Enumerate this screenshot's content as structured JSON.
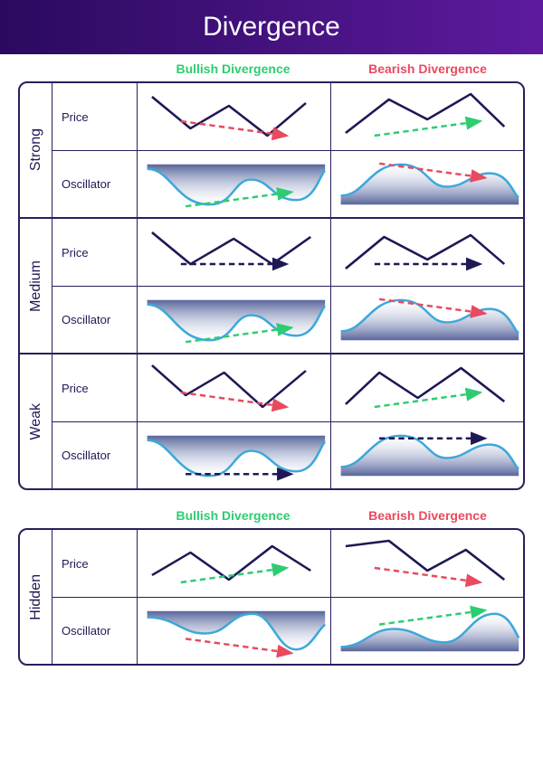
{
  "title": "Divergence",
  "colors": {
    "header_grad_left": "#2a0a5e",
    "header_grad_right": "#5e1a9e",
    "border": "#2a1e5c",
    "line": "#1e1854",
    "osc_stroke": "#3da8d9",
    "osc_fill_top": "#3a4a8a",
    "osc_fill_bot": "#e8eef8",
    "bullish": "#2ecc71",
    "bearish": "#e84a5f",
    "flat": "#1e1854",
    "text_dark": "#1e1854"
  },
  "column_headers": {
    "bullish": "Bullish Divergence",
    "bearish": "Bearish Divergence"
  },
  "row_labels": {
    "price": "Price",
    "oscillator": "Oscillator"
  },
  "groups": [
    {
      "id": "main",
      "categories": [
        {
          "label": "Strong",
          "rows": [
            {
              "type": "price",
              "bullish_price": {
                "peaks": "down-down",
                "arrow": "down",
                "arrow_color": "bearish"
              },
              "bearish_price": {
                "peaks": "up-up",
                "arrow": "up",
                "arrow_color": "bullish"
              }
            },
            {
              "type": "oscillator",
              "bullish_osc": {
                "shape": "valley",
                "arrow": "up",
                "arrow_color": "bullish"
              },
              "bearish_osc": {
                "shape": "peak",
                "arrow": "down",
                "arrow_color": "bearish"
              }
            }
          ]
        },
        {
          "label": "Medium",
          "rows": [
            {
              "type": "price",
              "bullish_price": {
                "peaks": "down-flat",
                "arrow": "flat",
                "arrow_color": "flat"
              },
              "bearish_price": {
                "peaks": "up-flat",
                "arrow": "flat",
                "arrow_color": "flat"
              }
            },
            {
              "type": "oscillator",
              "bullish_osc": {
                "shape": "valley",
                "arrow": "up",
                "arrow_color": "bullish"
              },
              "bearish_osc": {
                "shape": "peak",
                "arrow": "down",
                "arrow_color": "bearish"
              }
            }
          ]
        },
        {
          "label": "Weak",
          "rows": [
            {
              "type": "price",
              "bullish_price": {
                "peaks": "down-up",
                "arrow": "down",
                "arrow_color": "bearish"
              },
              "bearish_price": {
                "peaks": "up-down",
                "arrow": "up",
                "arrow_color": "bullish"
              }
            },
            {
              "type": "oscillator",
              "bullish_osc": {
                "shape": "valley",
                "arrow": "flat",
                "arrow_color": "flat"
              },
              "bearish_osc": {
                "shape": "peak",
                "arrow": "flat",
                "arrow_color": "flat"
              }
            }
          ]
        }
      ]
    },
    {
      "id": "hidden",
      "categories": [
        {
          "label": "Hidden",
          "rows": [
            {
              "type": "price",
              "bullish_price": {
                "peaks": "up-up-low",
                "arrow": "up",
                "arrow_color": "bullish"
              },
              "bearish_price": {
                "peaks": "down-down-high",
                "arrow": "down",
                "arrow_color": "bearish"
              }
            },
            {
              "type": "oscillator",
              "bullish_osc": {
                "shape": "valley-hidden",
                "arrow": "down",
                "arrow_color": "bearish"
              },
              "bearish_osc": {
                "shape": "peak-hidden",
                "arrow": "up",
                "arrow_color": "bullish"
              }
            }
          ]
        }
      ]
    }
  ]
}
